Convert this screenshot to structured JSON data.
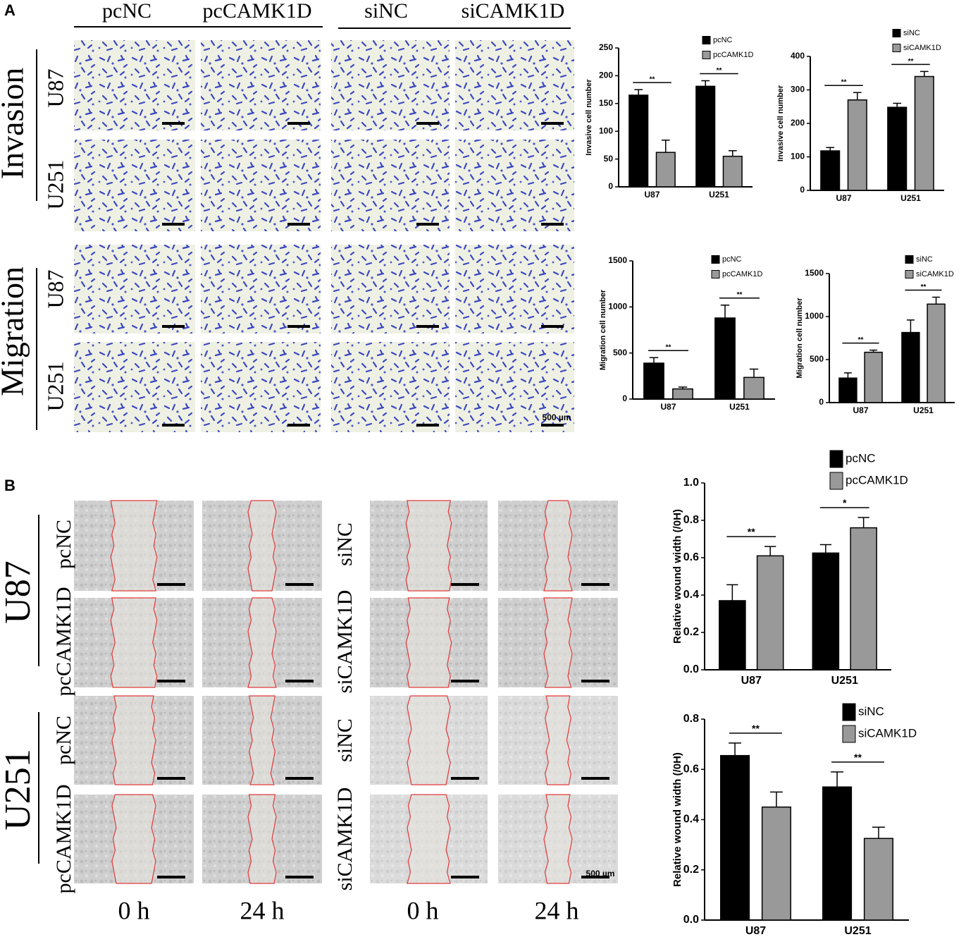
{
  "panel_a": {
    "label": "A",
    "columns": [
      "pcNC",
      "pcCAMK1D",
      "siNC",
      "siCAMK1D"
    ],
    "groups": [
      "Invasion",
      "Migration"
    ],
    "rows": [
      "U87",
      "U251",
      "U87",
      "U251"
    ],
    "scale_bar": "500 µm"
  },
  "panel_b": {
    "label": "B",
    "groups": [
      "U87",
      "U251"
    ],
    "rows_left": [
      "pcNC",
      "pcCAMK1D",
      "pcNC",
      "pcCAMK1D"
    ],
    "rows_right": [
      "siNC",
      "siCAMK1D",
      "siNC",
      "siCAMK1D"
    ],
    "times": [
      "0 h",
      "24 h",
      "0 h",
      "24 h"
    ],
    "scale_bar": "500 µm"
  },
  "chart_data": [
    {
      "type": "bar",
      "ylabel": "Invasive cell number",
      "categories": [
        "U87",
        "U251"
      ],
      "significance": [
        "**",
        "**"
      ],
      "series": [
        {
          "name": "pcNC",
          "color": "#000000",
          "values": [
            165,
            181
          ],
          "errors": [
            10,
            10
          ]
        },
        {
          "name": "pcCAMK1D",
          "color": "#999999",
          "values": [
            62,
            55
          ],
          "errors": [
            22,
            10
          ]
        }
      ],
      "ylim": [
        0,
        250
      ],
      "yticks": [
        0,
        50,
        100,
        150,
        200,
        250
      ]
    },
    {
      "type": "bar",
      "ylabel": "Invasive cell number",
      "categories": [
        "U87",
        "U251"
      ],
      "significance": [
        "**",
        "**"
      ],
      "series": [
        {
          "name": "siNC",
          "color": "#000000",
          "values": [
            118,
            248
          ],
          "errors": [
            10,
            12
          ]
        },
        {
          "name": "siCAMK1D",
          "color": "#999999",
          "values": [
            270,
            340
          ],
          "errors": [
            22,
            15
          ]
        }
      ],
      "ylim": [
        0,
        400
      ],
      "yticks": [
        0,
        100,
        200,
        300,
        400
      ]
    },
    {
      "type": "bar",
      "ylabel": "Migration cell number",
      "categories": [
        "U87",
        "U251"
      ],
      "significance": [
        "**",
        "**"
      ],
      "series": [
        {
          "name": "pcNC",
          "color": "#000000",
          "values": [
            390,
            880
          ],
          "errors": [
            60,
            140
          ]
        },
        {
          "name": "pcCAMK1D",
          "color": "#999999",
          "values": [
            110,
            235
          ],
          "errors": [
            20,
            90
          ]
        }
      ],
      "ylim": [
        0,
        1500
      ],
      "yticks": [
        0,
        500,
        1000,
        1500
      ]
    },
    {
      "type": "bar",
      "ylabel": "Migration cell number",
      "categories": [
        "U87",
        "U251"
      ],
      "significance": [
        "**",
        "**"
      ],
      "series": [
        {
          "name": "siNC",
          "color": "#000000",
          "values": [
            285,
            815
          ],
          "errors": [
            60,
            145
          ]
        },
        {
          "name": "siCAMK1D",
          "color": "#999999",
          "values": [
            585,
            1145
          ],
          "errors": [
            25,
            80
          ]
        }
      ],
      "ylim": [
        0,
        1500
      ],
      "yticks": [
        0,
        500,
        1000,
        1500
      ]
    },
    {
      "type": "bar",
      "ylabel": "Relative wound width (/0H)",
      "categories": [
        "U87",
        "U251"
      ],
      "significance": [
        "**",
        "*"
      ],
      "series": [
        {
          "name": "pcNC",
          "color": "#000000",
          "values": [
            0.37,
            0.625
          ],
          "errors": [
            0.085,
            0.045
          ]
        },
        {
          "name": "pcCAMK1D",
          "color": "#999999",
          "values": [
            0.61,
            0.76
          ],
          "errors": [
            0.05,
            0.055
          ]
        }
      ],
      "ylim": [
        0,
        1
      ],
      "yticks": [
        {
          "value": 0,
          "label": "0.0"
        },
        0.2,
        0.4,
        0.6,
        0.8,
        {
          "value": 1,
          "label": "1.0"
        }
      ]
    },
    {
      "type": "bar",
      "ylabel": "Relative wound width (/0H)",
      "categories": [
        "U87",
        "U251"
      ],
      "significance": [
        "**",
        "**"
      ],
      "series": [
        {
          "name": "siNC",
          "color": "#000000",
          "values": [
            0.655,
            0.53
          ],
          "errors": [
            0.05,
            0.06
          ]
        },
        {
          "name": "siCAMK1D",
          "color": "#999999",
          "values": [
            0.45,
            0.325
          ],
          "errors": [
            0.06,
            0.045
          ]
        }
      ],
      "ylim": [
        0,
        0.8
      ],
      "yticks": [
        {
          "value": 0,
          "label": "0.0"
        },
        0.2,
        0.4,
        0.6,
        0.8
      ]
    }
  ]
}
